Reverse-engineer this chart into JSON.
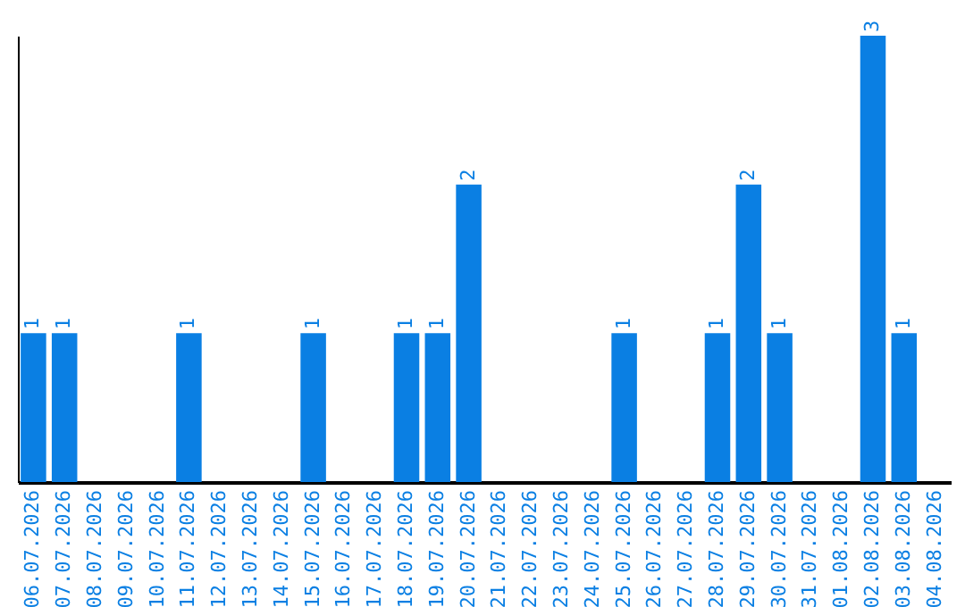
{
  "chart_data": {
    "type": "bar",
    "categories": [
      "06.07.2026",
      "07.07.2026",
      "08.07.2026",
      "09.07.2026",
      "10.07.2026",
      "11.07.2026",
      "12.07.2026",
      "13.07.2026",
      "14.07.2026",
      "15.07.2026",
      "16.07.2026",
      "17.07.2026",
      "18.07.2026",
      "19.07.2026",
      "20.07.2026",
      "21.07.2026",
      "22.07.2026",
      "23.07.2026",
      "24.07.2026",
      "25.07.2026",
      "26.07.2026",
      "27.07.2026",
      "28.07.2026",
      "29.07.2026",
      "30.07.2026",
      "31.07.2026",
      "01.08.2026",
      "02.08.2026",
      "03.08.2026",
      "04.08.2026"
    ],
    "values": [
      1,
      1,
      0,
      0,
      0,
      1,
      0,
      0,
      0,
      1,
      0,
      0,
      1,
      1,
      2,
      0,
      0,
      0,
      0,
      1,
      0,
      0,
      1,
      2,
      1,
      0,
      0,
      3,
      1,
      0
    ],
    "value_labels": [
      "1",
      "1",
      null,
      null,
      null,
      "1",
      null,
      null,
      null,
      "1",
      null,
      null,
      "1",
      "1",
      "2",
      null,
      null,
      null,
      null,
      "1",
      null,
      null,
      "1",
      "2",
      "1",
      null,
      null,
      "3",
      "1",
      null
    ],
    "color": "#0a7fe3",
    "tick_labels": "x",
    "grid": false
  }
}
